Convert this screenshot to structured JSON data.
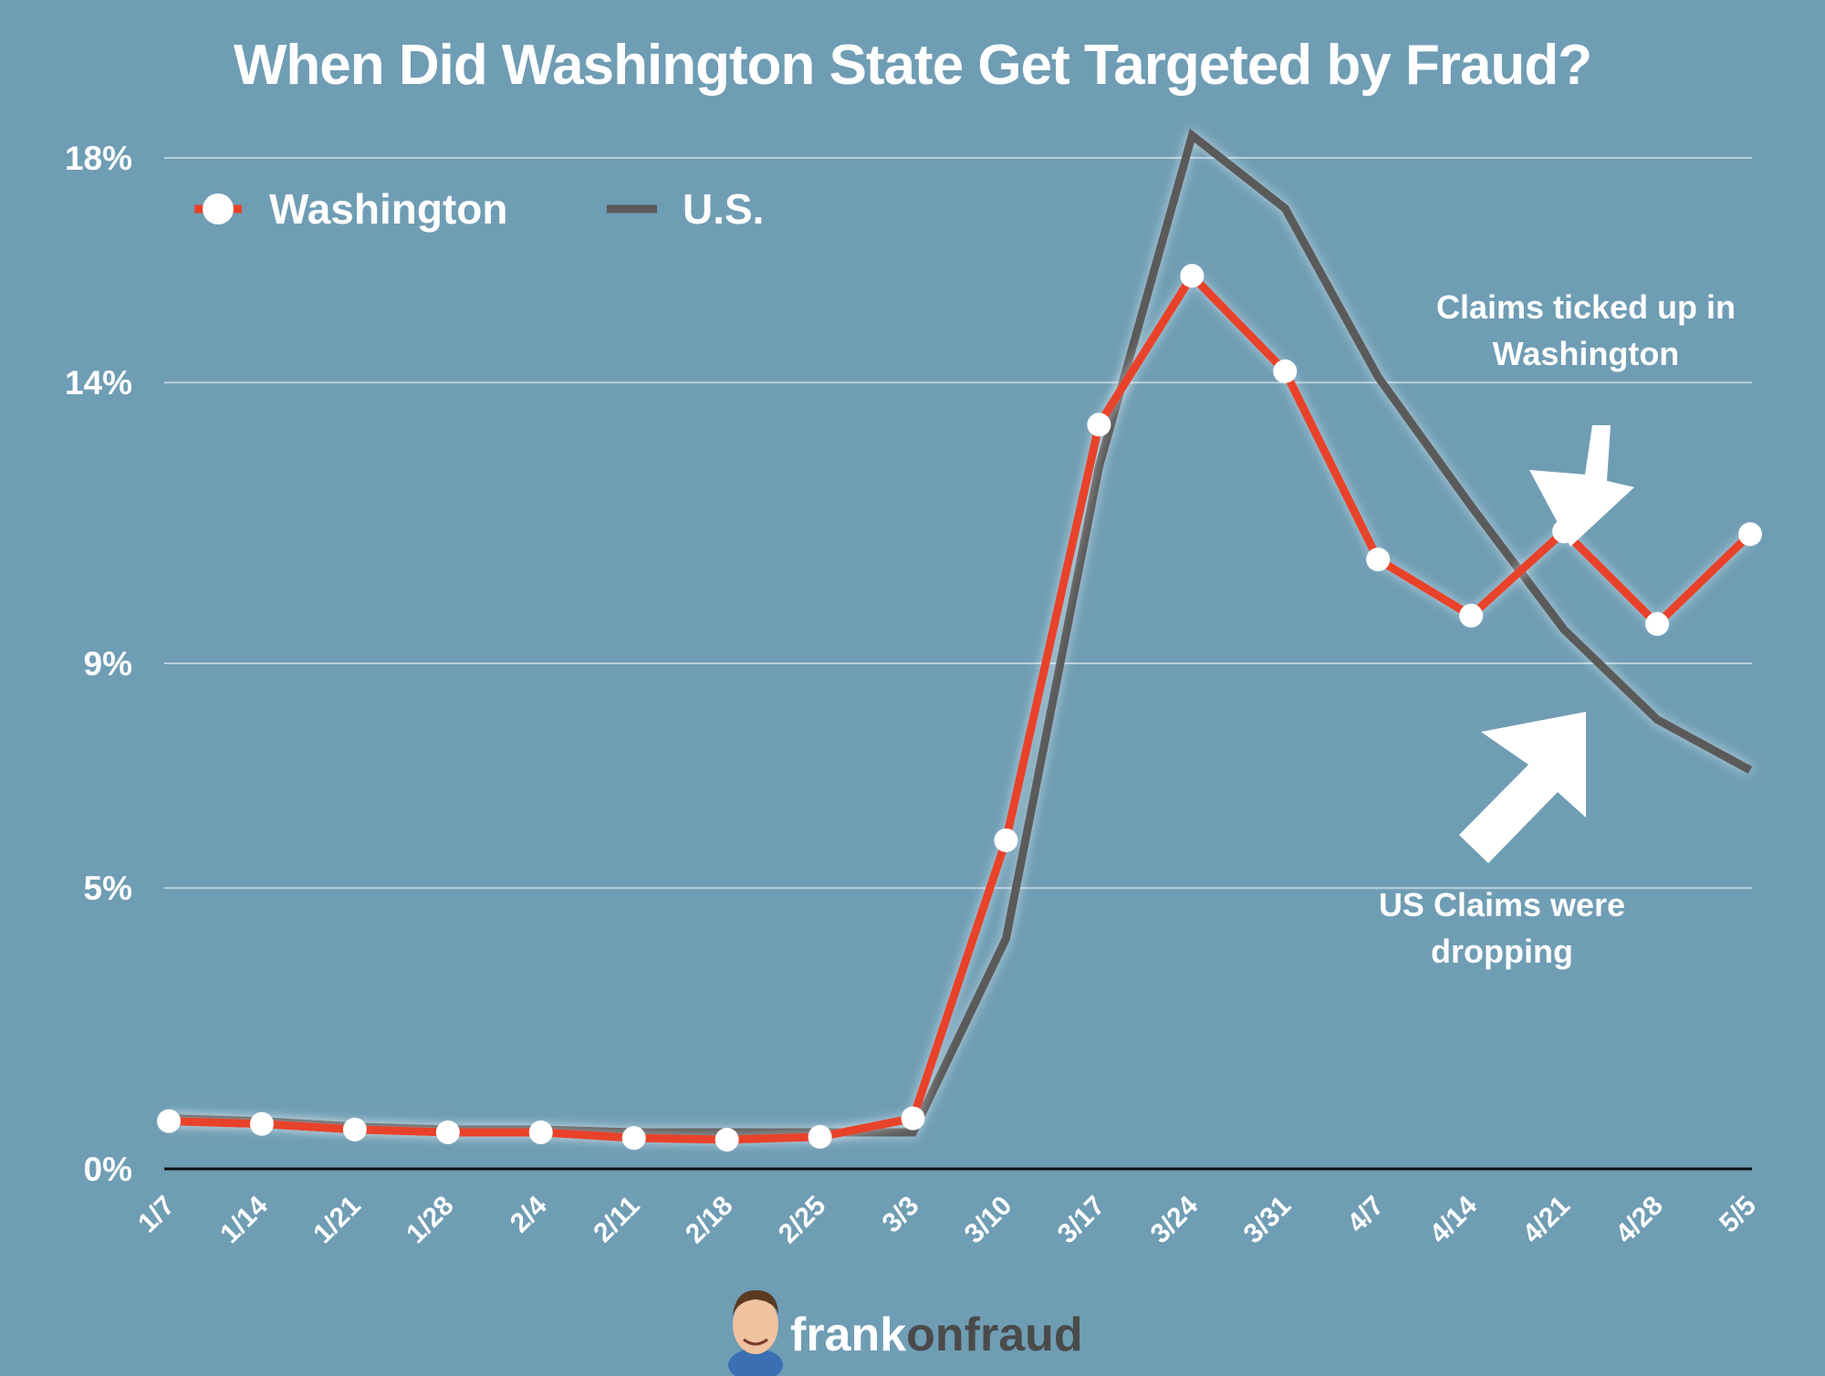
{
  "title": "When Did Washington State Get Targeted by Fraud?",
  "legend": {
    "washington_label": "Washington",
    "us_label": "U.S."
  },
  "annotations": {
    "washington_note_line1": "Claims ticked up in",
    "washington_note_line2": "Washington",
    "us_note_line1": "US Claims were",
    "us_note_line2": "dropping"
  },
  "branding": {
    "part1": "frank",
    "part2": "onfraud"
  },
  "colors": {
    "background": "#6f9db4",
    "washington": "#e8432a",
    "us": "#5a5a5a",
    "grid": "#b9d0dc",
    "text": "#ffffff"
  },
  "chart_data": {
    "type": "line",
    "title": "When Did Washington State Get Targeted by Fraud?",
    "x": [
      "1/7",
      "1/14",
      "1/21",
      "1/28",
      "2/4",
      "2/11",
      "2/18",
      "2/25",
      "3/3",
      "3/10",
      "3/17",
      "3/24",
      "3/31",
      "4/7",
      "4/14",
      "4/21",
      "4/28",
      "5/5"
    ],
    "y_ticks": [
      {
        "value": 0,
        "label": "0%"
      },
      {
        "value": 5,
        "label": "5%"
      },
      {
        "value": 9,
        "label": "9%"
      },
      {
        "value": 14,
        "label": "14%"
      },
      {
        "value": 18,
        "label": "18%"
      }
    ],
    "ylim": [
      0,
      18
    ],
    "grid": true,
    "legend_position": "top-left",
    "series": [
      {
        "name": "Washington",
        "color": "#e8432a",
        "markers": true,
        "values": [
          0.85,
          0.8,
          0.7,
          0.65,
          0.65,
          0.55,
          0.52,
          0.57,
          0.9,
          5.85,
          13.25,
          15.9,
          14.2,
          10.85,
          9.85,
          11.35,
          9.7,
          11.3
        ]
      },
      {
        "name": "U.S.",
        "color": "#5a5a5a",
        "markers": false,
        "values": [
          0.9,
          0.85,
          0.75,
          0.7,
          0.7,
          0.65,
          0.65,
          0.65,
          0.65,
          4.1,
          12.5,
          18.4,
          17.1,
          14.1,
          11.8,
          9.6,
          8.0,
          7.1
        ]
      }
    ]
  }
}
